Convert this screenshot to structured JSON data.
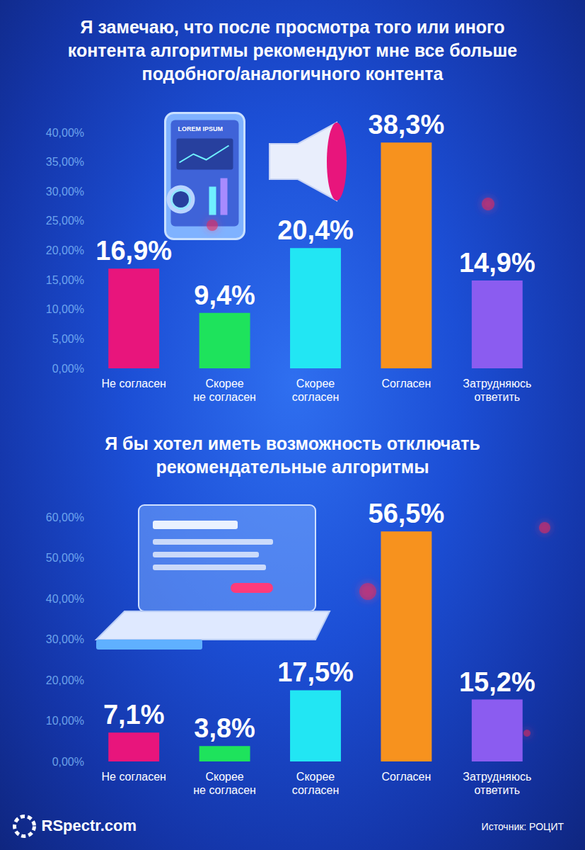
{
  "chart_data": [
    {
      "type": "bar",
      "title": "Я замечаю, что после просмотра того или иного\nконтента алгоритмы рекомендуют мне все больше\nподобного/аналогичного контента",
      "categories": [
        "Не согласен",
        "Скорее\nне согласен",
        "Скорее\nсогласен",
        "Согласен",
        "Затрудняюсь\nответить"
      ],
      "values": [
        16.9,
        9.4,
        20.4,
        38.3,
        14.9
      ],
      "value_labels": [
        "16,9%",
        "9,4%",
        "20,4%",
        "38,3%",
        "14,9%"
      ],
      "colors": [
        "#e8157c",
        "#1ee35c",
        "#22e6f3",
        "#f7921e",
        "#8b5cf0"
      ],
      "ylim": [
        0,
        40
      ],
      "yticks": [
        {
          "value": 0,
          "label": "0,00%"
        },
        {
          "value": 5,
          "label": "5,00%"
        },
        {
          "value": 10,
          "label": "10,00%"
        },
        {
          "value": 15,
          "label": "15,00%"
        },
        {
          "value": 20,
          "label": "20,00%"
        },
        {
          "value": 25,
          "label": "25,00%"
        },
        {
          "value": 30,
          "label": "30,00%"
        },
        {
          "value": 35,
          "label": "35,00%"
        },
        {
          "value": 40,
          "label": "40,00%"
        }
      ],
      "grid": false,
      "data_labels": true,
      "annotations": [
        "LOREM IPSUM"
      ]
    },
    {
      "type": "bar",
      "title": "Я бы хотел иметь возможность отключать\nрекомендательные алгоритмы",
      "categories": [
        "Не согласен",
        "Скорее\nне согласен",
        "Скорее\nсогласен",
        "Согласен",
        "Затрудняюсь\nответить"
      ],
      "values": [
        7.1,
        3.8,
        17.5,
        56.5,
        15.2
      ],
      "value_labels": [
        "7,1%",
        "3,8%",
        "17,5%",
        "56,5%",
        "15,2%"
      ],
      "colors": [
        "#e8157c",
        "#1ee35c",
        "#22e6f3",
        "#f7921e",
        "#8b5cf0"
      ],
      "ylim": [
        0,
        60
      ],
      "yticks": [
        {
          "value": 0,
          "label": "0,00%"
        },
        {
          "value": 10,
          "label": "10,00%"
        },
        {
          "value": 20,
          "label": "20,00%"
        },
        {
          "value": 30,
          "label": "30,00%"
        },
        {
          "value": 40,
          "label": "40,00%"
        },
        {
          "value": 50,
          "label": "50,00%"
        },
        {
          "value": 60,
          "label": "60,00%"
        }
      ],
      "grid": false,
      "data_labels": true
    }
  ],
  "footer": {
    "site": "RSpectr.com",
    "source": "Источник: РОЦИТ"
  }
}
